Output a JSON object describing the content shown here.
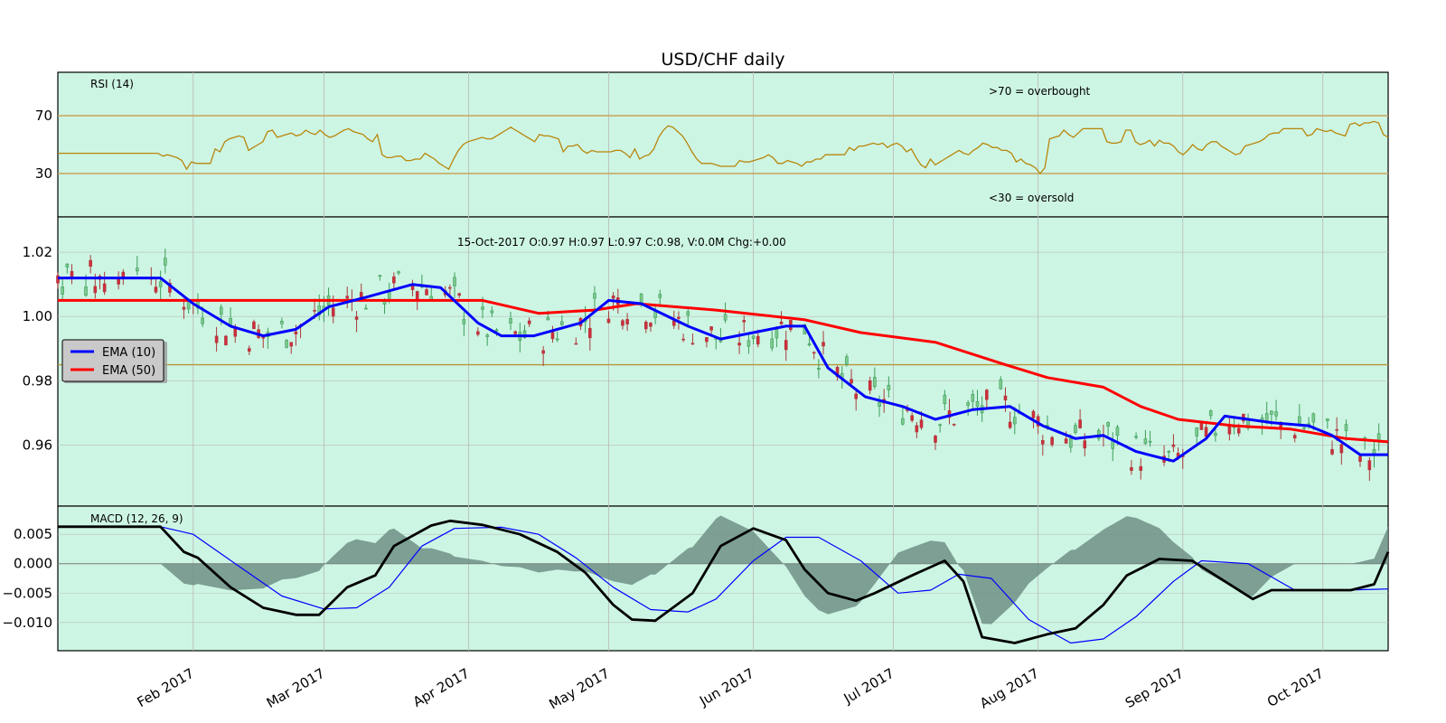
{
  "chart_data": [
    {
      "type": "line",
      "title": "USD/CHF daily",
      "panel": "rsi",
      "label": "RSI (14)",
      "yticks": [
        30,
        70
      ],
      "ylim": [
        0,
        100
      ],
      "reference_lines": [
        30,
        70
      ],
      "annotations": [
        ">70 = overbought",
        "<30 = oversold"
      ],
      "series": [
        {
          "name": "RSI (14)",
          "color": "#b8860b",
          "values": [
            44,
            44,
            44,
            44,
            44,
            44,
            44,
            44,
            44,
            44,
            44,
            44,
            44,
            44,
            44,
            44,
            44,
            44,
            44,
            44,
            44,
            44,
            42,
            43,
            42,
            41,
            39,
            33,
            38,
            37,
            37,
            37,
            37,
            47,
            45,
            52,
            54,
            55,
            56,
            55,
            46,
            48,
            50,
            52,
            59,
            60,
            55,
            56,
            57,
            58,
            56,
            57,
            60,
            58,
            57,
            60,
            57,
            55,
            56,
            58,
            60,
            61,
            59,
            58,
            57,
            54,
            52,
            57,
            43,
            41,
            41,
            42,
            42,
            39,
            39,
            40,
            40,
            44,
            42,
            40,
            37,
            35,
            33,
            40,
            46,
            50,
            52,
            53,
            54,
            55,
            54,
            54,
            56,
            58,
            60,
            62,
            60,
            58,
            56,
            54,
            52,
            57,
            56,
            56,
            55,
            54,
            45,
            49,
            49,
            50,
            46,
            44,
            46,
            45,
            45,
            45,
            45,
            46,
            46,
            44,
            41,
            47,
            40,
            42,
            43,
            47,
            55,
            60,
            63,
            62,
            59,
            56,
            51,
            45,
            40,
            37,
            37,
            37,
            36,
            35,
            35,
            35,
            35,
            39,
            38,
            38,
            39,
            40,
            41,
            43,
            41,
            37,
            37,
            39,
            38,
            37,
            35,
            38,
            38,
            40,
            40,
            43,
            43,
            43,
            43,
            43,
            48,
            46,
            49,
            49,
            50,
            51,
            50,
            51,
            48,
            50,
            51,
            49,
            45,
            47,
            41,
            36,
            34,
            40,
            36,
            38,
            40,
            42,
            44,
            46,
            44,
            43,
            46,
            48,
            51,
            50,
            48,
            48,
            46,
            46,
            44,
            38,
            40,
            37,
            36,
            34,
            30,
            34,
            54,
            55,
            56,
            60,
            57,
            55,
            58,
            61,
            61,
            61,
            61,
            61,
            52,
            51,
            51,
            52,
            60,
            60,
            52,
            50,
            51,
            53,
            49,
            53,
            51,
            51,
            49,
            45,
            43,
            46,
            50,
            47,
            46,
            50,
            52,
            52,
            49,
            47,
            45,
            43,
            44,
            49,
            50,
            51,
            52,
            54,
            57,
            58,
            58,
            61,
            61,
            61,
            61,
            61,
            56,
            57,
            61,
            60,
            59,
            60,
            58,
            57,
            56,
            64,
            65,
            63,
            65,
            65,
            66,
            65,
            57,
            55
          ]
        }
      ]
    },
    {
      "type": "candlestick",
      "panel": "price",
      "annotation": "15-Oct-2017 O:0.97 H:0.97 L:0.97 C:0.98, V:0.0M Chg:+0.00",
      "ylim": [
        0.941,
        1.031
      ],
      "yticks": [
        "1.02",
        "1.00",
        "0.98",
        "0.96"
      ],
      "xlim": [
        "2017-01-03",
        "2017-10-15"
      ],
      "xticks": [
        "Feb 2017",
        "Mar 2017",
        "Apr 2017",
        "May 2017",
        "Jun 2017",
        "Jul 2017",
        "Aug 2017",
        "Sep 2017",
        "Oct 2017"
      ],
      "horizontal_line": 0.985,
      "legend": {
        "placement": "center-left",
        "entries": [
          {
            "label": "EMA (10)",
            "color": "#0000ff"
          },
          {
            "label": "EMA (50)",
            "color": "#ff0000"
          }
        ]
      },
      "candle_up_color": "#3c9e5a",
      "candle_down_color": "#a83c3c",
      "ema10_points": [
        [
          "2017-01-03",
          1.012
        ],
        [
          "2017-01-25",
          1.012
        ],
        [
          "2017-02-01",
          1.004
        ],
        [
          "2017-02-09",
          0.997
        ],
        [
          "2017-02-16",
          0.994
        ],
        [
          "2017-02-23",
          0.996
        ],
        [
          "2017-03-02",
          1.003
        ],
        [
          "2017-03-10",
          1.006
        ],
        [
          "2017-03-20",
          1.01
        ],
        [
          "2017-03-26",
          1.009
        ],
        [
          "2017-04-03",
          0.998
        ],
        [
          "2017-04-08",
          0.994
        ],
        [
          "2017-04-15",
          0.994
        ],
        [
          "2017-04-25",
          0.998
        ],
        [
          "2017-05-01",
          1.005
        ],
        [
          "2017-05-08",
          1.004
        ],
        [
          "2017-05-18",
          0.997
        ],
        [
          "2017-05-25",
          0.993
        ],
        [
          "2017-06-08",
          0.997
        ],
        [
          "2017-06-12",
          0.997
        ],
        [
          "2017-06-17",
          0.984
        ],
        [
          "2017-06-25",
          0.975
        ],
        [
          "2017-07-03",
          0.972
        ],
        [
          "2017-07-10",
          0.968
        ],
        [
          "2017-07-18",
          0.971
        ],
        [
          "2017-07-26",
          0.972
        ],
        [
          "2017-08-02",
          0.966
        ],
        [
          "2017-08-09",
          0.962
        ],
        [
          "2017-08-15",
          0.963
        ],
        [
          "2017-08-22",
          0.958
        ],
        [
          "2017-08-30",
          0.955
        ],
        [
          "2017-09-06",
          0.962
        ],
        [
          "2017-09-10",
          0.969
        ],
        [
          "2017-09-20",
          0.967
        ],
        [
          "2017-09-28",
          0.966
        ],
        [
          "2017-10-03",
          0.963
        ],
        [
          "2017-10-09",
          0.957
        ],
        [
          "2017-10-15",
          0.957
        ]
      ],
      "ema50_points": [
        [
          "2017-01-03",
          1.005
        ],
        [
          "2017-04-04",
          1.005
        ],
        [
          "2017-04-16",
          1.001
        ],
        [
          "2017-04-28",
          1.002
        ],
        [
          "2017-05-07",
          1.004
        ],
        [
          "2017-05-24",
          1.002
        ],
        [
          "2017-06-12",
          0.999
        ],
        [
          "2017-06-24",
          0.995
        ],
        [
          "2017-07-10",
          0.992
        ],
        [
          "2017-07-25",
          0.985
        ],
        [
          "2017-08-03",
          0.981
        ],
        [
          "2017-08-15",
          0.978
        ],
        [
          "2017-08-23",
          0.972
        ],
        [
          "2017-08-31",
          0.968
        ],
        [
          "2017-09-12",
          0.966
        ],
        [
          "2017-09-24",
          0.965
        ],
        [
          "2017-10-06",
          0.962
        ],
        [
          "2017-10-15",
          0.961
        ]
      ],
      "candles_note": "daily O/H/L/C read approximately from the plot"
    },
    {
      "type": "area",
      "panel": "macd",
      "label": "MACD (12, 26, 9)",
      "yticks": [
        "0.005",
        "0.000",
        "−0.005",
        "−0.010"
      ],
      "ylim": [
        -0.0148,
        0.0098
      ],
      "series": [
        {
          "name": "MACD",
          "color": "#000000"
        },
        {
          "name": "Signal",
          "color": "#0000ff"
        },
        {
          "name": "Histogram",
          "color": "#6f8f86"
        }
      ],
      "macd_points": [
        [
          "2017-01-03",
          0.0063
        ],
        [
          "2017-01-25",
          0.0063
        ],
        [
          "2017-01-30",
          0.002
        ],
        [
          "2017-02-02",
          0.001
        ],
        [
          "2017-02-09",
          -0.004
        ],
        [
          "2017-02-16",
          -0.0075
        ],
        [
          "2017-02-23",
          -0.0087
        ],
        [
          "2017-02-28",
          -0.0087
        ],
        [
          "2017-03-06",
          -0.004
        ],
        [
          "2017-03-12",
          -0.002
        ],
        [
          "2017-03-16",
          0.003
        ],
        [
          "2017-03-24",
          0.0065
        ],
        [
          "2017-03-28",
          0.0073
        ],
        [
          "2017-04-04",
          0.0066
        ],
        [
          "2017-04-12",
          0.005
        ],
        [
          "2017-04-20",
          0.002
        ],
        [
          "2017-04-26",
          -0.0015
        ],
        [
          "2017-05-02",
          -0.007
        ],
        [
          "2017-05-06",
          -0.0095
        ],
        [
          "2017-05-11",
          -0.0097
        ],
        [
          "2017-05-19",
          -0.005
        ],
        [
          "2017-05-25",
          0.003
        ],
        [
          "2017-06-01",
          0.006
        ],
        [
          "2017-06-08",
          0.004
        ],
        [
          "2017-06-12",
          -0.001
        ],
        [
          "2017-06-17",
          -0.005
        ],
        [
          "2017-06-23",
          -0.0063
        ],
        [
          "2017-06-27",
          -0.005
        ],
        [
          "2017-07-05",
          -0.002
        ],
        [
          "2017-07-12",
          0.0005
        ],
        [
          "2017-07-16",
          -0.003
        ],
        [
          "2017-07-20",
          -0.0125
        ],
        [
          "2017-07-27",
          -0.0135
        ],
        [
          "2017-08-03",
          -0.012
        ],
        [
          "2017-08-09",
          -0.011
        ],
        [
          "2017-08-15",
          -0.007
        ],
        [
          "2017-08-20",
          -0.002
        ],
        [
          "2017-08-27",
          0.0008
        ],
        [
          "2017-09-03",
          0.0005
        ],
        [
          "2017-09-08",
          -0.002
        ],
        [
          "2017-09-16",
          -0.006
        ],
        [
          "2017-09-20",
          -0.0045
        ],
        [
          "2017-09-30",
          -0.0045
        ],
        [
          "2017-10-07",
          -0.0045
        ],
        [
          "2017-10-12",
          -0.0035
        ],
        [
          "2017-10-15",
          0.002
        ]
      ],
      "signal_points": [
        [
          "2017-01-03",
          0.0063
        ],
        [
          "2017-01-25",
          0.0063
        ],
        [
          "2017-02-01",
          0.005
        ],
        [
          "2017-02-10",
          0.0
        ],
        [
          "2017-02-20",
          -0.0055
        ],
        [
          "2017-03-01",
          -0.0077
        ],
        [
          "2017-03-08",
          -0.0075
        ],
        [
          "2017-03-15",
          -0.004
        ],
        [
          "2017-03-22",
          0.003
        ],
        [
          "2017-03-29",
          0.006
        ],
        [
          "2017-04-08",
          0.0062
        ],
        [
          "2017-04-16",
          0.005
        ],
        [
          "2017-04-24",
          0.001
        ],
        [
          "2017-05-02",
          -0.004
        ],
        [
          "2017-05-10",
          -0.0078
        ],
        [
          "2017-05-18",
          -0.0082
        ],
        [
          "2017-05-24",
          -0.006
        ],
        [
          "2017-06-01",
          0.0005
        ],
        [
          "2017-06-08",
          0.0045
        ],
        [
          "2017-06-15",
          0.0045
        ],
        [
          "2017-06-24",
          0.0005
        ],
        [
          "2017-07-02",
          -0.005
        ],
        [
          "2017-07-09",
          -0.0045
        ],
        [
          "2017-07-15",
          -0.0018
        ],
        [
          "2017-07-22",
          -0.0025
        ],
        [
          "2017-07-30",
          -0.0095
        ],
        [
          "2017-08-08",
          -0.0135
        ],
        [
          "2017-08-15",
          -0.0128
        ],
        [
          "2017-08-22",
          -0.009
        ],
        [
          "2017-08-30",
          -0.003
        ],
        [
          "2017-09-05",
          0.0005
        ],
        [
          "2017-09-15",
          0.0
        ],
        [
          "2017-09-25",
          -0.0045
        ],
        [
          "2017-10-05",
          -0.0045
        ],
        [
          "2017-10-15",
          -0.0043
        ]
      ],
      "note": "x positions for macd panel share the price panel time axis"
    }
  ],
  "panels": {
    "rsi_label": "RSI (14)",
    "macd_label": "MACD (12, 26, 9)",
    "overbought_note": ">70 = overbought",
    "oversold_note": "<30 = oversold",
    "info_line": "15-Oct-2017 O:0.97 H:0.97 L:0.97 C:0.98, V:0.0M Chg:+0.00",
    "title": "USD/CHF daily"
  },
  "colors": {
    "panel_bg": "#cdf5e3",
    "grid": "#b9bfbb",
    "rsi_line": "#b8860b",
    "ema10": "#0000ff",
    "ema50": "#ff0000",
    "hist_fill": "#6f8f86"
  }
}
